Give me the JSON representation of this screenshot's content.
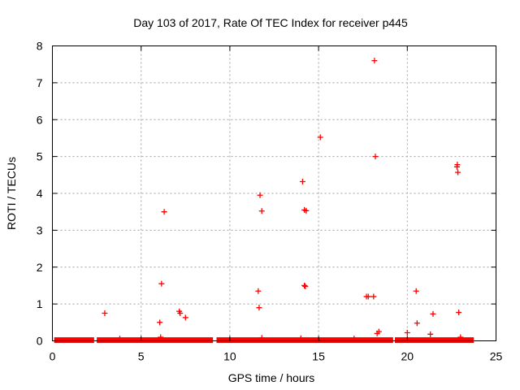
{
  "chart_data": {
    "type": "scatter",
    "title": "Day 103 of 2017, Rate Of TEC Index for receiver p445",
    "xlabel": "GPS time / hours",
    "ylabel": "ROTI / TECUs",
    "xlim": [
      0,
      25
    ],
    "ylim": [
      0,
      8
    ],
    "xticks": [
      "0",
      "5",
      "10",
      "15",
      "20",
      "25"
    ],
    "yticks": [
      "0",
      "1",
      "2",
      "3",
      "4",
      "5",
      "6",
      "7",
      "8"
    ],
    "grid": true,
    "marker": "plus",
    "color": "#ff0000",
    "baseline_segments": [
      [
        0.1,
        2.35
      ],
      [
        2.5,
        9.05
      ],
      [
        9.25,
        19.2
      ],
      [
        19.3,
        23.75
      ]
    ],
    "series": [
      {
        "name": "ROTI",
        "points": [
          [
            2.95,
            0.75
          ],
          [
            6.05,
            0.5
          ],
          [
            6.15,
            1.55
          ],
          [
            6.3,
            3.5
          ],
          [
            7.15,
            0.8
          ],
          [
            7.2,
            0.75
          ],
          [
            7.5,
            0.63
          ],
          [
            11.6,
            1.35
          ],
          [
            11.65,
            0.9
          ],
          [
            11.7,
            3.95
          ],
          [
            11.8,
            3.52
          ],
          [
            14.1,
            4.32
          ],
          [
            14.2,
            1.5
          ],
          [
            14.25,
            1.48
          ],
          [
            14.2,
            3.55
          ],
          [
            14.3,
            3.53
          ],
          [
            15.1,
            5.52
          ],
          [
            17.7,
            1.2
          ],
          [
            17.8,
            1.2
          ],
          [
            18.1,
            1.2
          ],
          [
            18.15,
            7.6
          ],
          [
            18.2,
            5.0
          ],
          [
            18.3,
            0.2
          ],
          [
            18.4,
            0.25
          ],
          [
            20.0,
            0.22
          ],
          [
            20.5,
            1.35
          ],
          [
            20.55,
            0.48
          ],
          [
            21.3,
            0.18
          ],
          [
            21.45,
            0.73
          ],
          [
            22.8,
            4.72
          ],
          [
            22.82,
            4.78
          ],
          [
            22.85,
            4.57
          ],
          [
            22.9,
            0.77
          ],
          [
            6.1,
            0.1
          ],
          [
            11.8,
            0.08
          ],
          [
            14.0,
            0.07
          ],
          [
            23.0,
            0.1
          ],
          [
            3.8,
            0.06
          ],
          [
            17.0,
            0.06
          ]
        ]
      }
    ]
  }
}
